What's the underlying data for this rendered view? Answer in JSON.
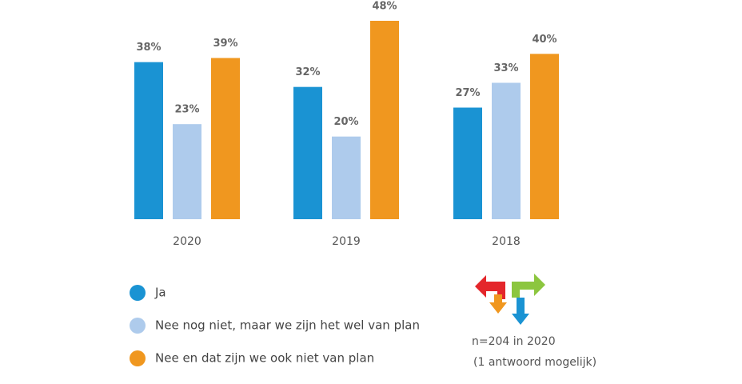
{
  "chart_data": {
    "type": "bar",
    "categories": [
      "2020",
      "2019",
      "2018"
    ],
    "series": [
      {
        "name": "Ja",
        "color": "#1a93d3",
        "values": [
          38,
          32,
          27
        ],
        "value_labels": [
          "38%",
          "32%",
          "27%"
        ]
      },
      {
        "name": "Nee nog niet, maar we zijn het wel van plan",
        "color": "#aecbec",
        "values": [
          23,
          20,
          33
        ],
        "value_labels": [
          "23%",
          "20%",
          "33%"
        ]
      },
      {
        "name": "Nee en dat zijn we ook niet van plan",
        "color": "#f0971f",
        "values": [
          39,
          48,
          40
        ],
        "value_labels": [
          "39%",
          "48%",
          "40%"
        ]
      }
    ],
    "annotations": [
      "n=204 in 2020",
      "(1 antwoord mogelijk)"
    ]
  }
}
